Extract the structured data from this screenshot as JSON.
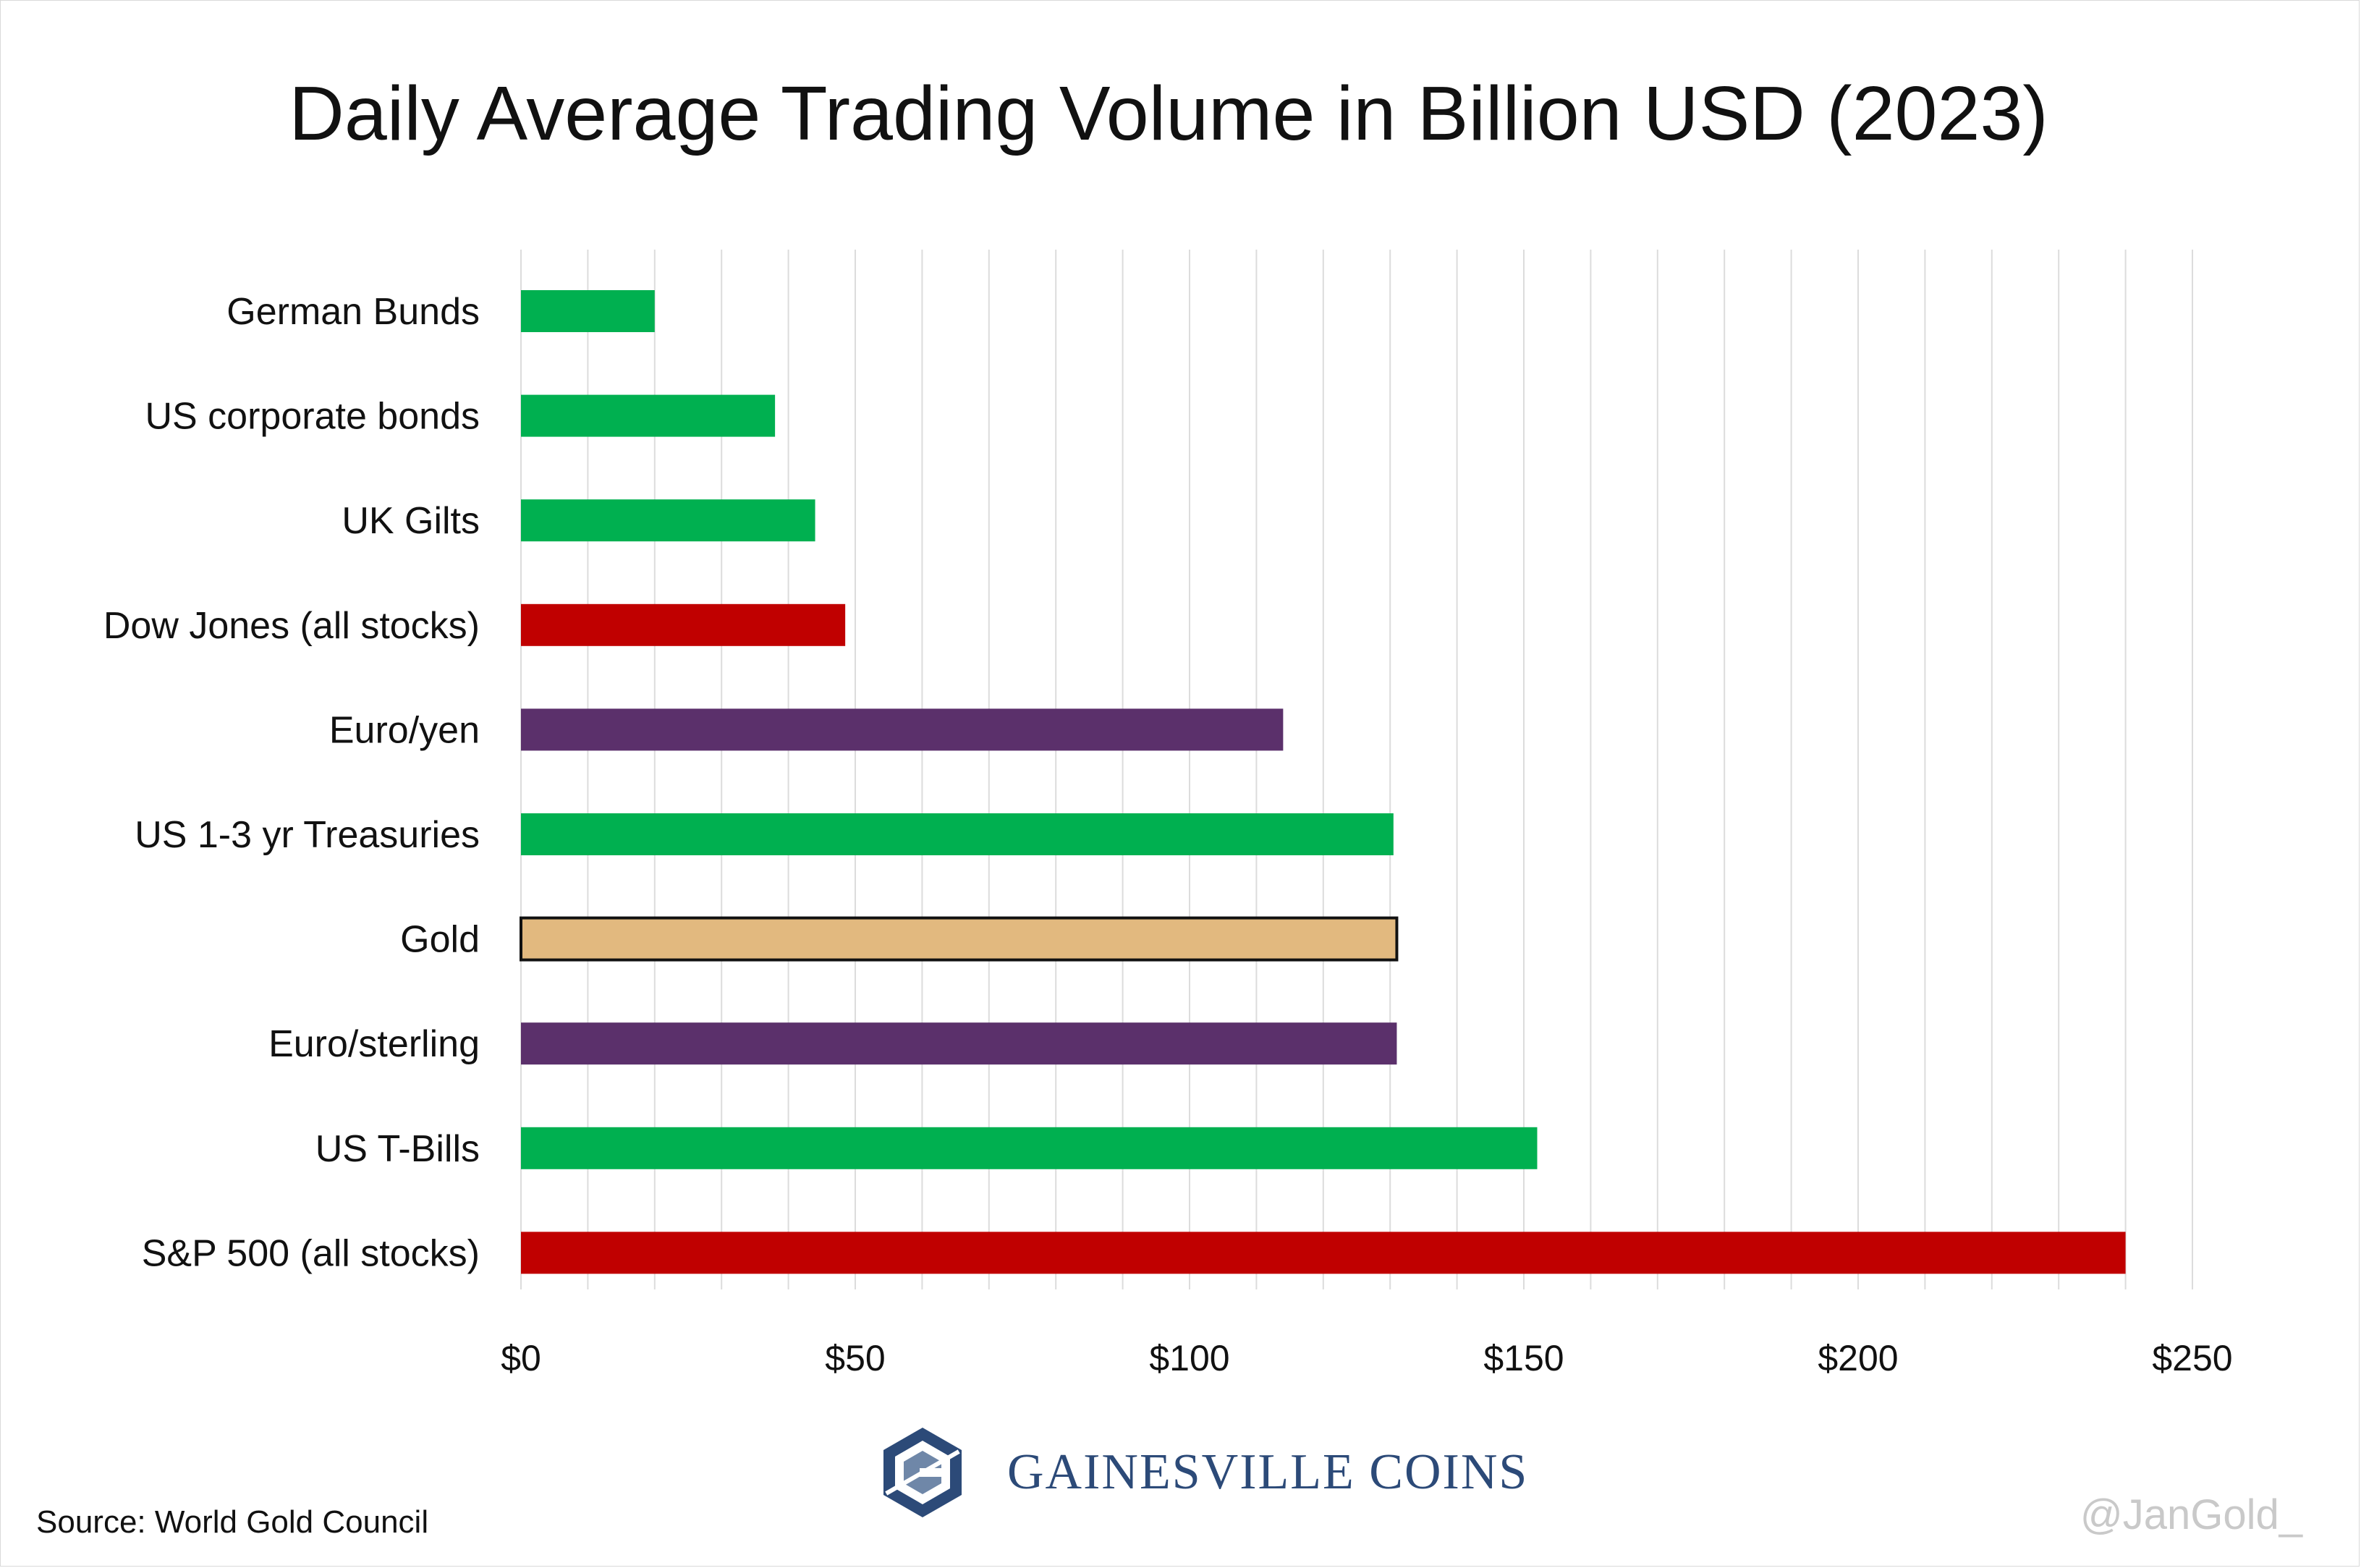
{
  "chart_data": {
    "type": "bar",
    "orientation": "horizontal",
    "title": "Daily Average Trading Volume in Billion USD (2023)",
    "categories": [
      "German Bunds",
      "US corporate bonds",
      "UK Gilts",
      "Dow Jones (all stocks)",
      "Euro/yen",
      "US 1-3 yr Treasuries",
      "Gold",
      "Euro/sterling",
      "US T-Bills",
      "S&P 500 (all stocks)"
    ],
    "values": [
      20,
      38,
      44,
      48.5,
      114,
      130.5,
      131,
      131,
      152,
      240
    ],
    "bar_colors": [
      "#00b050",
      "#00b050",
      "#00b050",
      "#c00000",
      "#5b306b",
      "#00b050",
      "#e2b97f",
      "#5b306b",
      "#00b050",
      "#c00000"
    ],
    "highlighted_category": "Gold",
    "highlight_outline": "#111111",
    "xlim": [
      0,
      250
    ],
    "x_ticks": [
      0,
      50,
      100,
      150,
      200,
      250
    ],
    "x_tick_labels": [
      "$0",
      "$50",
      "$100",
      "$150",
      "$200",
      "$250"
    ],
    "minor_step": 10,
    "grid": "vertical",
    "grid_color": "#dcdcdc",
    "xlabel": "",
    "ylabel": ""
  },
  "source": "Source: World Gold Council",
  "brand": {
    "name": "Gainesville Coins",
    "name_text": "GAINESVILLE COINS",
    "logo_icon": "gainesville-coins-logo-icon"
  },
  "watermark": "@JanGold_"
}
